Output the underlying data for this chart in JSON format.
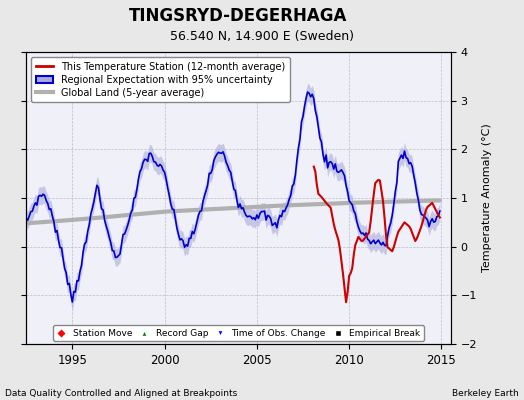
{
  "title": "TINGSRYD-DEGERHAGA",
  "subtitle": "56.540 N, 14.900 E (Sweden)",
  "ylabel": "Temperature Anomaly (°C)",
  "xlabel_left": "Data Quality Controlled and Aligned at Breakpoints",
  "xlabel_right": "Berkeley Earth",
  "xlim": [
    1992.5,
    2015.5
  ],
  "ylim": [
    -2.0,
    4.0
  ],
  "yticks": [
    -2,
    -1,
    0,
    1,
    2,
    3,
    4
  ],
  "xticks": [
    1995,
    2000,
    2005,
    2010,
    2015
  ],
  "bg_color": "#e8e8e8",
  "plot_bg_color": "#f0f0f8",
  "regional_color": "#0000cc",
  "regional_fill_color": "#aaaadd",
  "station_color": "#cc0000",
  "global_color": "#b0b0b0",
  "global_lw": 3.0,
  "regional_lw": 1.2,
  "station_lw": 1.5,
  "regional_key_years": [
    1992.5,
    1993.0,
    1993.4,
    1993.8,
    1994.2,
    1994.6,
    1995.0,
    1995.4,
    1995.8,
    1996.3,
    1996.7,
    1997.0,
    1997.4,
    1997.7,
    1998.0,
    1998.4,
    1998.8,
    1999.2,
    1999.6,
    2000.0,
    2000.4,
    2000.8,
    2001.2,
    2001.6,
    2002.0,
    2002.4,
    2002.8,
    2003.2,
    2003.6,
    2004.0,
    2004.4,
    2004.8,
    2005.2,
    2005.6,
    2006.0,
    2006.4,
    2006.8,
    2007.1,
    2007.4,
    2007.7,
    2008.0,
    2008.3,
    2008.6,
    2008.85,
    2009.1,
    2009.4,
    2009.7,
    2010.0,
    2010.3,
    2010.6,
    2010.9,
    2011.2,
    2011.6,
    2012.0,
    2012.4,
    2012.7,
    2013.0,
    2013.4,
    2013.8,
    2014.2,
    2014.6,
    2014.9
  ],
  "regional_key_vals": [
    0.5,
    0.9,
    1.1,
    0.8,
    0.2,
    -0.4,
    -1.1,
    -0.5,
    0.2,
    1.3,
    0.6,
    0.2,
    -0.3,
    0.1,
    0.5,
    1.0,
    1.7,
    1.9,
    1.7,
    1.5,
    0.8,
    0.2,
    0.0,
    0.3,
    0.8,
    1.4,
    1.9,
    1.9,
    1.5,
    0.9,
    0.7,
    0.6,
    0.7,
    0.6,
    0.4,
    0.7,
    1.0,
    1.5,
    2.5,
    3.1,
    3.2,
    2.5,
    1.9,
    1.7,
    1.7,
    1.6,
    1.5,
    1.0,
    0.7,
    0.3,
    0.2,
    0.1,
    0.1,
    0.0,
    0.8,
    1.8,
    1.9,
    1.7,
    0.8,
    0.5,
    0.5,
    0.7
  ],
  "station_key_years": [
    2008.0,
    2008.15,
    2008.3,
    2008.55,
    2008.75,
    2009.0,
    2009.2,
    2009.45,
    2009.65,
    2009.85,
    2010.0,
    2010.15,
    2010.3,
    2010.5,
    2010.7,
    2010.9,
    2011.1,
    2011.4,
    2011.65,
    2011.85,
    2012.05,
    2012.35,
    2012.65,
    2013.0,
    2013.3,
    2013.6,
    2013.9,
    2014.2,
    2014.5,
    2014.9
  ],
  "station_key_vals": [
    1.7,
    1.6,
    1.1,
    1.0,
    0.9,
    0.8,
    0.4,
    0.1,
    -0.5,
    -1.2,
    -0.6,
    -0.5,
    0.0,
    0.2,
    0.1,
    0.2,
    0.3,
    1.3,
    1.4,
    0.9,
    0.0,
    -0.1,
    0.3,
    0.5,
    0.4,
    0.1,
    0.4,
    0.8,
    0.9,
    0.6
  ],
  "global_key_years": [
    1992.5,
    1994,
    1996,
    1998,
    2000,
    2002,
    2004,
    2006,
    2008,
    2010,
    2012,
    2014.9
  ],
  "global_key_vals": [
    0.48,
    0.52,
    0.58,
    0.65,
    0.72,
    0.76,
    0.8,
    0.84,
    0.87,
    0.9,
    0.92,
    0.95
  ]
}
